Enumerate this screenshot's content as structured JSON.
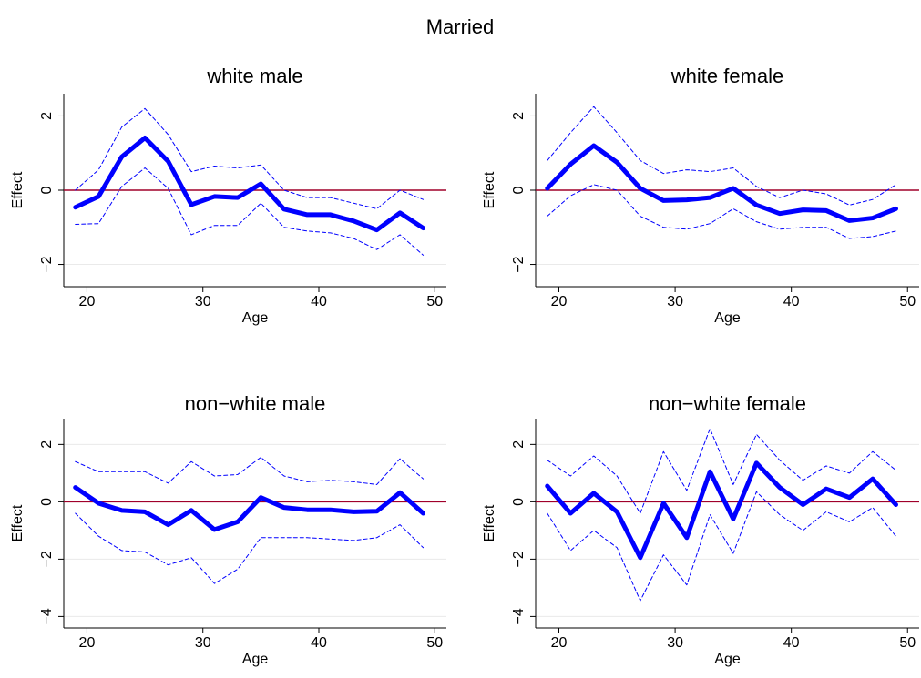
{
  "title": "Married",
  "chart_data": [
    {
      "type": "line",
      "title": "white male",
      "xlabel": "Age",
      "ylabel": "Effect",
      "x": [
        19,
        21,
        23,
        25,
        27,
        29,
        31,
        33,
        35,
        37,
        39,
        41,
        43,
        45,
        47,
        49
      ],
      "xlim": [
        18,
        51
      ],
      "xticks": [
        20,
        30,
        40,
        50
      ],
      "ylim": [
        -2.6,
        2.6
      ],
      "yticks": [
        {
          "value": -2,
          "label": "−2"
        },
        0,
        2
      ],
      "grid": true,
      "hline": 0,
      "hline_color": "#a0002a",
      "series": [
        {
          "color": "#0000ff",
          "style": "solid",
          "values": [
            -0.46,
            -0.17,
            0.9,
            1.41,
            0.78,
            -0.39,
            -0.17,
            -0.2,
            0.17,
            -0.51,
            -0.66,
            -0.66,
            -0.83,
            -1.07,
            -0.61,
            -1.02
          ]
        },
        {
          "color": "#0000ff",
          "style": "dashed",
          "values": [
            0.0,
            0.55,
            1.7,
            2.2,
            1.5,
            0.5,
            0.65,
            0.6,
            0.68,
            0.0,
            -0.2,
            -0.2,
            -0.35,
            -0.5,
            0.0,
            -0.25
          ]
        },
        {
          "color": "#0000ff",
          "style": "dashed",
          "values": [
            -0.92,
            -0.9,
            0.1,
            0.6,
            0.05,
            -1.2,
            -0.95,
            -0.95,
            -0.35,
            -1.0,
            -1.1,
            -1.15,
            -1.3,
            -1.6,
            -1.2,
            -1.75
          ]
        }
      ]
    },
    {
      "type": "line",
      "title": "white female",
      "xlabel": "Age",
      "ylabel": "Effect",
      "x": [
        19,
        21,
        23,
        25,
        27,
        29,
        31,
        33,
        35,
        37,
        39,
        41,
        43,
        45,
        47,
        49
      ],
      "xlim": [
        18,
        51
      ],
      "xticks": [
        20,
        30,
        40,
        50
      ],
      "ylim": [
        -2.6,
        2.6
      ],
      "yticks": [
        {
          "value": -2,
          "label": "−2"
        },
        0,
        2
      ],
      "grid": true,
      "hline": 0,
      "hline_color": "#a0002a",
      "series": [
        {
          "color": "#0000ff",
          "style": "solid",
          "values": [
            0.05,
            0.7,
            1.2,
            0.75,
            0.05,
            -0.28,
            -0.26,
            -0.2,
            0.05,
            -0.4,
            -0.63,
            -0.53,
            -0.55,
            -0.82,
            -0.75,
            -0.5
          ]
        },
        {
          "color": "#0000ff",
          "style": "dashed",
          "values": [
            0.8,
            1.55,
            2.25,
            1.55,
            0.8,
            0.45,
            0.55,
            0.5,
            0.6,
            0.1,
            -0.2,
            0.0,
            -0.1,
            -0.4,
            -0.25,
            0.15
          ]
        },
        {
          "color": "#0000ff",
          "style": "dashed",
          "values": [
            -0.7,
            -0.15,
            0.15,
            0.0,
            -0.7,
            -1.0,
            -1.05,
            -0.9,
            -0.5,
            -0.85,
            -1.05,
            -1.0,
            -1.0,
            -1.3,
            -1.25,
            -1.1
          ]
        }
      ]
    },
    {
      "type": "line",
      "title": "non−white male",
      "xlabel": "Age",
      "ylabel": "Effect",
      "x": [
        19,
        21,
        23,
        25,
        27,
        29,
        31,
        33,
        35,
        37,
        39,
        41,
        43,
        45,
        47,
        49
      ],
      "xlim": [
        18,
        51
      ],
      "xticks": [
        20,
        30,
        40,
        50
      ],
      "ylim": [
        -4.4,
        2.9
      ],
      "yticks": [
        {
          "value": -4,
          "label": "−4"
        },
        {
          "value": -2,
          "label": "−2"
        },
        0,
        2
      ],
      "grid": true,
      "hline": 0,
      "hline_color": "#a0002a",
      "series": [
        {
          "color": "#0000ff",
          "style": "solid",
          "values": [
            0.5,
            -0.05,
            -0.3,
            -0.35,
            -0.8,
            -0.3,
            -0.97,
            -0.7,
            0.15,
            -0.2,
            -0.28,
            -0.28,
            -0.35,
            -0.33,
            0.32,
            -0.4
          ]
        },
        {
          "color": "#0000ff",
          "style": "dashed",
          "values": [
            1.4,
            1.05,
            1.05,
            1.05,
            0.65,
            1.4,
            0.9,
            0.95,
            1.55,
            0.9,
            0.7,
            0.75,
            0.7,
            0.6,
            1.5,
            0.8
          ]
        },
        {
          "color": "#0000ff",
          "style": "dashed",
          "values": [
            -0.4,
            -1.2,
            -1.7,
            -1.75,
            -2.2,
            -1.95,
            -2.85,
            -2.35,
            -1.25,
            -1.25,
            -1.25,
            -1.3,
            -1.35,
            -1.25,
            -0.8,
            -1.6
          ]
        }
      ]
    },
    {
      "type": "line",
      "title": "non−white female",
      "xlabel": "Age",
      "ylabel": "Effect",
      "x": [
        19,
        21,
        23,
        25,
        27,
        29,
        31,
        33,
        35,
        37,
        39,
        41,
        43,
        45,
        47,
        49
      ],
      "xlim": [
        18,
        51
      ],
      "xticks": [
        20,
        30,
        40,
        50
      ],
      "ylim": [
        -4.4,
        2.9
      ],
      "yticks": [
        {
          "value": -4,
          "label": "−4"
        },
        {
          "value": -2,
          "label": "−2"
        },
        0,
        2
      ],
      "grid": true,
      "hline": 0,
      "hline_color": "#a0002a",
      "series": [
        {
          "color": "#0000ff",
          "style": "solid",
          "values": [
            0.55,
            -0.4,
            0.3,
            -0.35,
            -1.95,
            -0.05,
            -1.25,
            1.05,
            -0.6,
            1.35,
            0.5,
            -0.1,
            0.45,
            0.15,
            0.8,
            -0.1
          ]
        },
        {
          "color": "#0000ff",
          "style": "dashed",
          "values": [
            1.45,
            0.9,
            1.6,
            0.9,
            -0.4,
            1.75,
            0.4,
            2.55,
            0.6,
            2.35,
            1.45,
            0.75,
            1.25,
            1.0,
            1.75,
            1.1
          ]
        },
        {
          "color": "#0000ff",
          "style": "dashed",
          "values": [
            -0.4,
            -1.7,
            -1.0,
            -1.6,
            -3.45,
            -1.85,
            -2.9,
            -0.45,
            -1.8,
            0.35,
            -0.45,
            -1.0,
            -0.35,
            -0.7,
            -0.2,
            -1.2
          ]
        }
      ]
    }
  ]
}
